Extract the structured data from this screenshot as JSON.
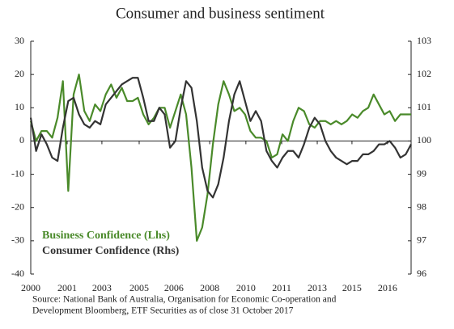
{
  "chart_data": {
    "type": "line",
    "title": "Consumer and business sentiment",
    "source": [
      "Source: National Bank of Australia, Organisation for Economic Co-operation and",
      "Development Bloomberg, ETF Securities as of close 31 October 2017"
    ],
    "x": [
      2000,
      2000.25,
      2000.5,
      2000.75,
      2001,
      2001.25,
      2001.5,
      2001.75,
      2002,
      2002.25,
      2002.5,
      2002.75,
      2003,
      2003.25,
      2003.5,
      2003.75,
      2004,
      2004.25,
      2004.5,
      2004.75,
      2005,
      2005.25,
      2005.5,
      2005.75,
      2006,
      2006.25,
      2006.5,
      2006.75,
      2007,
      2007.25,
      2007.5,
      2007.75,
      2008,
      2008.25,
      2008.5,
      2008.75,
      2009,
      2009.25,
      2009.5,
      2009.75,
      2010,
      2010.25,
      2010.5,
      2010.75,
      2011,
      2011.25,
      2011.5,
      2011.75,
      2012,
      2012.25,
      2012.5,
      2012.75,
      2013,
      2013.25,
      2013.5,
      2013.75,
      2014,
      2014.25,
      2014.5,
      2014.75,
      2015,
      2015.25,
      2015.5,
      2015.75,
      2016,
      2016.25,
      2016.5,
      2016.75,
      2017,
      2017.25,
      2017.5,
      2017.75
    ],
    "xlim": [
      2000,
      2017.75
    ],
    "xticks": [
      {
        "value": 2000,
        "label": "2000"
      },
      {
        "value": 2001.7,
        "label": "2001"
      },
      {
        "value": 2003.32,
        "label": "2003"
      },
      {
        "value": 2005.06,
        "label": "2005"
      },
      {
        "value": 2006.68,
        "label": "2006"
      },
      {
        "value": 2008.35,
        "label": "2008"
      },
      {
        "value": 2010.04,
        "label": "2010"
      },
      {
        "value": 2011.71,
        "label": "2011"
      },
      {
        "value": 2013.37,
        "label": "2013"
      },
      {
        "value": 2014.99,
        "label": "2015"
      },
      {
        "value": 2016.65,
        "label": "2016"
      }
    ],
    "ylim": [
      -40,
      30
    ],
    "yticks": [
      30,
      20,
      10,
      0,
      -10,
      -20,
      -30,
      -40
    ],
    "y2lim": [
      96,
      103
    ],
    "y2ticks": [
      103,
      102,
      101,
      100,
      99,
      98,
      97,
      96
    ],
    "grid": false,
    "series": [
      {
        "name": "Business Confidence (Lhs)",
        "color": "#4a8a2a",
        "axis": "y",
        "values": [
          6,
          0,
          3,
          3,
          1,
          7,
          18,
          -15,
          14,
          20,
          9,
          6,
          11,
          9,
          14,
          17,
          13,
          16,
          12,
          12,
          13,
          8,
          5,
          7,
          10,
          10,
          4,
          9,
          14,
          8,
          -8,
          -30,
          -26,
          -16,
          -1,
          11,
          18,
          14,
          9,
          10,
          8,
          3,
          1,
          1,
          0,
          -5,
          -4,
          2,
          0,
          6,
          10,
          9,
          5,
          4,
          6,
          6,
          5,
          6,
          5,
          6,
          8,
          7,
          9,
          10,
          14,
          11,
          8,
          9,
          6,
          8,
          8,
          8
        ]
      },
      {
        "name": "Consumer Confidence (Rhs)",
        "color": "#333333",
        "axis": "y2",
        "values": [
          100.7,
          99.7,
          100.2,
          99.9,
          99.5,
          99.4,
          100.4,
          101.2,
          101.3,
          100.8,
          100.5,
          100.4,
          100.6,
          100.5,
          101.1,
          101.3,
          101.5,
          101.7,
          101.8,
          101.9,
          101.9,
          101.3,
          100.6,
          100.6,
          101,
          100.8,
          99.8,
          100,
          101,
          101.8,
          101.6,
          100.6,
          99.2,
          98.5,
          98.3,
          98.7,
          99.5,
          100.6,
          101.4,
          101.8,
          101.2,
          100.6,
          100.9,
          100.6,
          99.7,
          99.4,
          99.2,
          99.5,
          99.7,
          99.7,
          99.5,
          99.9,
          100.4,
          100.7,
          100.5,
          100,
          99.7,
          99.5,
          99.4,
          99.3,
          99.4,
          99.4,
          99.6,
          99.6,
          99.7,
          99.9,
          99.9,
          100,
          99.8,
          99.5,
          99.6,
          99.9
        ]
      }
    ]
  }
}
